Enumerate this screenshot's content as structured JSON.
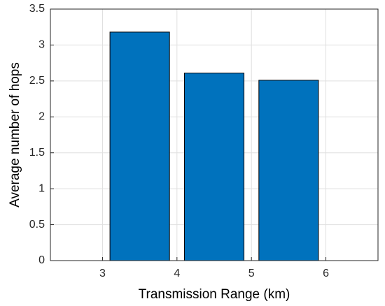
{
  "chart_data": {
    "type": "bar",
    "x_label": "Transmission Range (km)",
    "y_label": "Average number of hops",
    "x": [
      3.5,
      4.5,
      5.5
    ],
    "values": [
      3.18,
      2.61,
      2.51
    ],
    "color": "#0072bd",
    "xlim": [
      2.3,
      6.7
    ],
    "xticks": [
      3,
      4,
      5,
      6
    ],
    "ylim": [
      0,
      3.5
    ],
    "yticks": [
      0,
      0.5,
      1,
      1.5,
      2,
      2.5,
      3,
      3.5
    ],
    "grid": true
  }
}
